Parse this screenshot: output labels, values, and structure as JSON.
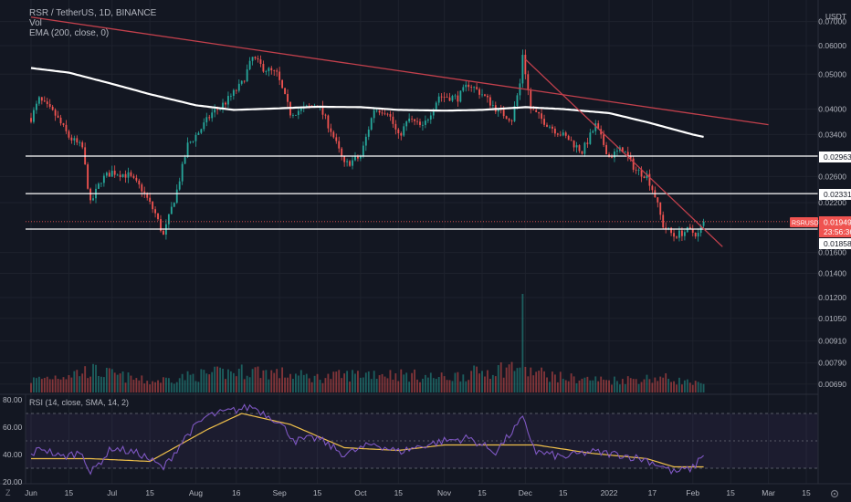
{
  "header": {
    "pair_title": "RSR / TetherUS, 1D, BINANCE",
    "volume_label": "Vol",
    "ema_label": "EMA (200, close, 0)",
    "rsi_label": "RSI (14, close, SMA, 14, 2)",
    "currency": "USDT"
  },
  "price_axis": {
    "ticks": [
      "0.07000",
      "0.06000",
      "0.05000",
      "0.04000",
      "0.03400",
      "0.02600",
      "0.02200",
      "0.01600",
      "0.01400",
      "0.01200",
      "0.01050",
      "0.00910",
      "0.00790",
      "0.00690"
    ]
  },
  "rsi_axis": {
    "ticks": [
      "80.00",
      "60.00",
      "40.00",
      "20.00"
    ]
  },
  "time_axis": {
    "ticks": [
      "Jun",
      "15",
      "Jul",
      "15",
      "Aug",
      "16",
      "Sep",
      "15",
      "Oct",
      "15",
      "Nov",
      "15",
      "Dec",
      "15",
      "2022",
      "17",
      "Feb",
      "15",
      "Mar",
      "15"
    ]
  },
  "price_labels": {
    "symbol": "RSRUSDT",
    "last_price": "0.01949",
    "countdown": "23:56:36",
    "level_1": "0.02963",
    "level_2": "0.02331",
    "level_3": "0.01858"
  },
  "colors": {
    "background": "#131722",
    "up": "#26a69a",
    "down": "#ef5350",
    "ema": "#ffffff",
    "trendline": "#c2404c",
    "horizontal_level": "#ffffff",
    "rsi_line": "#7e57c2",
    "rsi_sma": "#f0c04a",
    "rsi_band": "#7e57c2"
  },
  "chart_data": {
    "type": "candlestick",
    "interval": "1D",
    "log_scale": true,
    "ylim": [
      0.0065,
      0.075
    ],
    "horizontal_levels": [
      0.02963,
      0.02331,
      0.01858
    ],
    "last_price": 0.01949,
    "trendlines": [
      {
        "from": [
          "2021-06-01",
          0.072
        ],
        "to": [
          "2022-03-01",
          0.0362
        ]
      },
      {
        "from": [
          "2021-12-01",
          0.055
        ],
        "to": [
          "2022-02-12",
          0.0166
        ]
      }
    ],
    "price_path": [
      [
        "2021-06-01",
        0.0378
      ],
      [
        "2021-06-04",
        0.0425
      ],
      [
        "2021-06-10",
        0.0385
      ],
      [
        "2021-06-15",
        0.0335
      ],
      [
        "2021-06-20",
        0.0312
      ],
      [
        "2021-06-23",
        0.0218
      ],
      [
        "2021-06-27",
        0.0255
      ],
      [
        "2021-07-01",
        0.0268
      ],
      [
        "2021-07-07",
        0.0262
      ],
      [
        "2021-07-12",
        0.024
      ],
      [
        "2021-07-17",
        0.0205
      ],
      [
        "2021-07-20",
        0.0178
      ],
      [
        "2021-07-25",
        0.0238
      ],
      [
        "2021-07-29",
        0.0318
      ],
      [
        "2021-08-02",
        0.0345
      ],
      [
        "2021-08-07",
        0.039
      ],
      [
        "2021-08-12",
        0.0418
      ],
      [
        "2021-08-18",
        0.047
      ],
      [
        "2021-08-22",
        0.0555
      ],
      [
        "2021-08-26",
        0.052
      ],
      [
        "2021-08-31",
        0.05
      ],
      [
        "2021-09-05",
        0.039
      ],
      [
        "2021-09-10",
        0.04
      ],
      [
        "2021-09-15",
        0.0415
      ],
      [
        "2021-09-20",
        0.035
      ],
      [
        "2021-09-25",
        0.028
      ],
      [
        "2021-10-01",
        0.0295
      ],
      [
        "2021-10-06",
        0.04
      ],
      [
        "2021-10-11",
        0.0395
      ],
      [
        "2021-10-15",
        0.0335
      ],
      [
        "2021-10-19",
        0.0375
      ],
      [
        "2021-10-24",
        0.0355
      ],
      [
        "2021-10-30",
        0.0435
      ],
      [
        "2021-11-06",
        0.043
      ],
      [
        "2021-11-10",
        0.047
      ],
      [
        "2021-11-15",
        0.044
      ],
      [
        "2021-11-21",
        0.0395
      ],
      [
        "2021-11-26",
        0.0375
      ],
      [
        "2021-11-29",
        0.047
      ],
      [
        "2021-11-30",
        0.057
      ],
      [
        "2021-12-03",
        0.04
      ],
      [
        "2021-12-07",
        0.0375
      ],
      [
        "2021-12-12",
        0.035
      ],
      [
        "2021-12-17",
        0.033
      ],
      [
        "2021-12-22",
        0.0305
      ],
      [
        "2021-12-27",
        0.036
      ],
      [
        "2022-01-01",
        0.0295
      ],
      [
        "2022-01-06",
        0.031
      ],
      [
        "2022-01-11",
        0.027
      ],
      [
        "2022-01-15",
        0.0262
      ],
      [
        "2022-01-18",
        0.023
      ],
      [
        "2022-01-21",
        0.019
      ],
      [
        "2022-01-25",
        0.0178
      ],
      [
        "2022-01-30",
        0.0184
      ],
      [
        "2022-02-03",
        0.018
      ],
      [
        "2022-02-05",
        0.01949
      ]
    ],
    "ema_200_path": [
      [
        "2021-06-01",
        0.052
      ],
      [
        "2021-06-15",
        0.0505
      ],
      [
        "2021-07-01",
        0.047
      ],
      [
        "2021-07-15",
        0.044
      ],
      [
        "2021-08-01",
        0.041
      ],
      [
        "2021-08-15",
        0.0398
      ],
      [
        "2021-09-01",
        0.0402
      ],
      [
        "2021-09-15",
        0.0406
      ],
      [
        "2021-10-01",
        0.0405
      ],
      [
        "2021-10-15",
        0.0398
      ],
      [
        "2021-11-01",
        0.0396
      ],
      [
        "2021-11-15",
        0.0398
      ],
      [
        "2021-12-01",
        0.0405
      ],
      [
        "2021-12-15",
        0.04
      ],
      [
        "2022-01-01",
        0.039
      ],
      [
        "2022-01-15",
        0.0368
      ],
      [
        "2022-02-01",
        0.034
      ],
      [
        "2022-02-05",
        0.0335
      ]
    ],
    "volume_path": [
      [
        "2021-06-01",
        0.25
      ],
      [
        "2021-06-23",
        0.45
      ],
      [
        "2021-07-15",
        0.22
      ],
      [
        "2021-08-01",
        0.35
      ],
      [
        "2021-08-22",
        0.45
      ],
      [
        "2021-09-15",
        0.3
      ],
      [
        "2021-10-06",
        0.4
      ],
      [
        "2021-11-01",
        0.3
      ],
      [
        "2021-11-29",
        0.55
      ],
      [
        "2021-11-30",
        1.0
      ],
      [
        "2021-12-01",
        0.45
      ],
      [
        "2021-12-15",
        0.3
      ],
      [
        "2022-01-01",
        0.25
      ],
      [
        "2022-01-21",
        0.3
      ],
      [
        "2022-02-05",
        0.15
      ]
    ],
    "rsi_ylim": [
      20,
      80
    ],
    "rsi_bands": [
      70,
      50,
      30
    ],
    "rsi_path": [
      [
        "2021-06-01",
        40
      ],
      [
        "2021-06-05",
        45
      ],
      [
        "2021-06-12",
        38
      ],
      [
        "2021-06-20",
        42
      ],
      [
        "2021-06-23",
        26
      ],
      [
        "2021-07-01",
        45
      ],
      [
        "2021-07-12",
        40
      ],
      [
        "2021-07-20",
        30
      ],
      [
        "2021-07-29",
        55
      ],
      [
        "2021-08-05",
        68
      ],
      [
        "2021-08-12",
        71
      ],
      [
        "2021-08-22",
        75
      ],
      [
        "2021-08-31",
        65
      ],
      [
        "2021-09-07",
        50
      ],
      [
        "2021-09-15",
        52
      ],
      [
        "2021-09-25",
        40
      ],
      [
        "2021-10-06",
        48
      ],
      [
        "2021-10-15",
        42
      ],
      [
        "2021-10-25",
        47
      ],
      [
        "2021-11-01",
        50
      ],
      [
        "2021-11-10",
        52
      ],
      [
        "2021-11-20",
        42
      ],
      [
        "2021-11-30",
        66
      ],
      [
        "2021-12-05",
        42
      ],
      [
        "2021-12-15",
        38
      ],
      [
        "2021-12-25",
        42
      ],
      [
        "2022-01-05",
        40
      ],
      [
        "2022-01-15",
        36
      ],
      [
        "2022-01-20",
        32
      ],
      [
        "2022-01-25",
        27
      ],
      [
        "2022-02-01",
        30
      ],
      [
        "2022-02-05",
        41
      ]
    ],
    "rsi_sma_path": [
      [
        "2021-06-01",
        37
      ],
      [
        "2021-06-23",
        37
      ],
      [
        "2021-07-15",
        35
      ],
      [
        "2021-08-05",
        58
      ],
      [
        "2021-08-18",
        70
      ],
      [
        "2021-09-05",
        62
      ],
      [
        "2021-09-25",
        45
      ],
      [
        "2021-10-15",
        43
      ],
      [
        "2021-11-01",
        47
      ],
      [
        "2021-11-20",
        47
      ],
      [
        "2021-12-05",
        47
      ],
      [
        "2021-12-25",
        41
      ],
      [
        "2022-01-15",
        37
      ],
      [
        "2022-01-25",
        31
      ],
      [
        "2022-02-05",
        31
      ]
    ]
  }
}
